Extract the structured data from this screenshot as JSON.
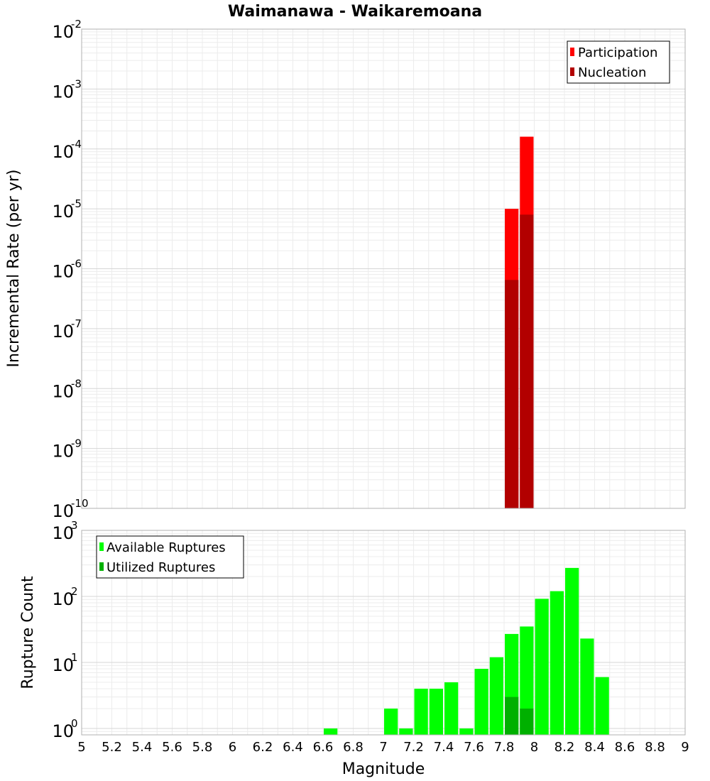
{
  "chart_data": [
    {
      "type": "bar",
      "title": "Waimanawa - Waikaremoana",
      "xlabel": "Magnitude",
      "ylabel": "Incremental Rate (per yr)",
      "yscale": "log",
      "ylim": [
        1e-10,
        0.01
      ],
      "xlim": [
        5,
        9
      ],
      "xticks": [
        "5",
        "5.2",
        "5.4",
        "5.6",
        "5.8",
        "6",
        "6.2",
        "6.4",
        "6.6",
        "6.8",
        "7",
        "7.2",
        "7.4",
        "7.6",
        "7.8",
        "8",
        "8.2",
        "8.4",
        "8.6",
        "8.8",
        "9"
      ],
      "yticks": [
        {
          "base": "10",
          "exp": "-10"
        },
        {
          "base": "10",
          "exp": "-9"
        },
        {
          "base": "10",
          "exp": "-8"
        },
        {
          "base": "10",
          "exp": "-7"
        },
        {
          "base": "10",
          "exp": "-6"
        },
        {
          "base": "10",
          "exp": "-5"
        },
        {
          "base": "10",
          "exp": "-4"
        },
        {
          "base": "10",
          "exp": "-3"
        },
        {
          "base": "10",
          "exp": "-2"
        }
      ],
      "legend_position": "top-right",
      "bin_width": 0.1,
      "series": [
        {
          "name": "Participation",
          "color": "#ff0000",
          "x": [
            7.85,
            7.95
          ],
          "values": [
            1e-05,
            0.00016
          ]
        },
        {
          "name": "Nucleation",
          "color": "#b20000",
          "x": [
            7.85,
            7.95
          ],
          "values": [
            6.5e-07,
            8e-06
          ]
        }
      ]
    },
    {
      "type": "bar",
      "xlabel": "Magnitude",
      "ylabel": "Rupture Count",
      "yscale": "log",
      "ylim": [
        0.8,
        1000
      ],
      "xlim": [
        5,
        9
      ],
      "yticks": [
        {
          "base": "10",
          "exp": "0"
        },
        {
          "base": "10",
          "exp": "1"
        },
        {
          "base": "10",
          "exp": "2"
        },
        {
          "base": "10",
          "exp": "3"
        }
      ],
      "legend_position": "top-left",
      "bin_width": 0.1,
      "series": [
        {
          "name": "Available Ruptures",
          "color": "#00ff00",
          "x": [
            6.65,
            7.05,
            7.15,
            7.25,
            7.35,
            7.45,
            7.55,
            7.65,
            7.75,
            7.85,
            7.95,
            8.05,
            8.15,
            8.25,
            8.35,
            8.45
          ],
          "values": [
            1,
            2,
            1,
            4,
            4,
            5,
            1,
            8,
            12,
            27,
            35,
            92,
            120,
            270,
            23,
            6
          ]
        },
        {
          "name": "Utilized Ruptures",
          "color": "#00b000",
          "x": [
            7.85,
            7.95
          ],
          "values": [
            3,
            2
          ]
        }
      ]
    }
  ]
}
